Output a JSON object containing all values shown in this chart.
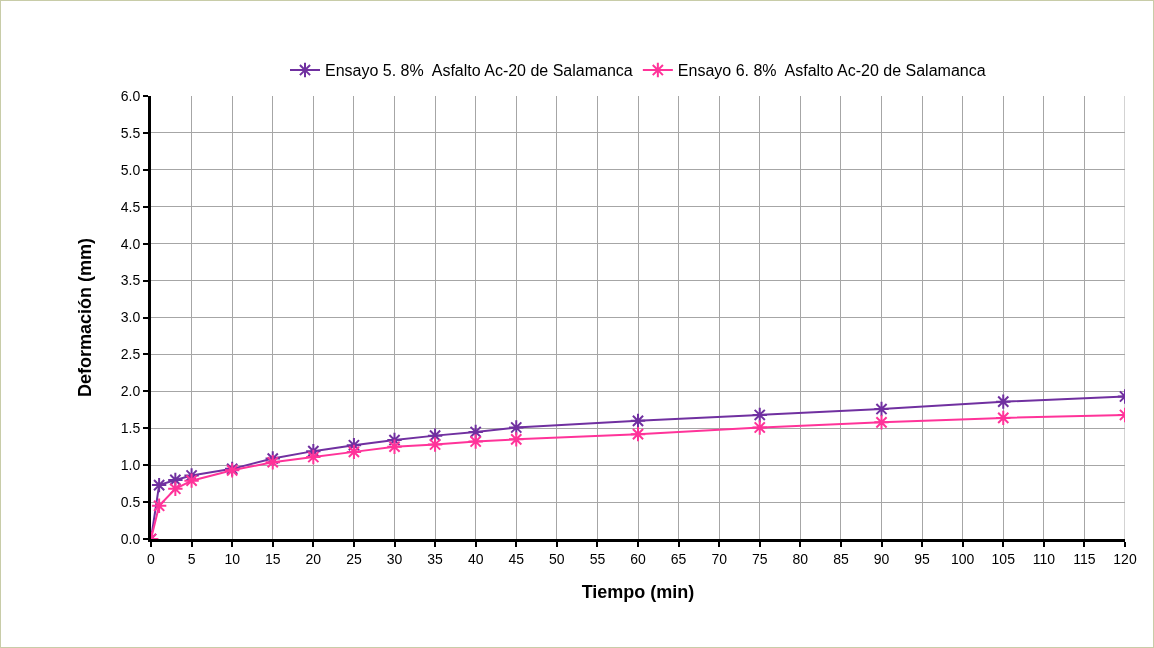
{
  "chart_data": {
    "type": "line",
    "xlabel": "Tiempo (min)",
    "ylabel": "Deformación (mm)",
    "series": [
      {
        "name": "Ensayo 5. 8%  Asfalto Ac-20 de Salamanca",
        "color": "#7030a0",
        "x": [
          0,
          1,
          3,
          5,
          10,
          15,
          20,
          25,
          30,
          35,
          40,
          45,
          60,
          75,
          90,
          105,
          120
        ],
        "values": [
          0,
          0.73,
          0.8,
          0.86,
          0.95,
          1.09,
          1.19,
          1.27,
          1.34,
          1.4,
          1.45,
          1.51,
          1.6,
          1.68,
          1.76,
          1.86,
          1.93
        ]
      },
      {
        "name": "Ensayo 6. 8%  Asfalto Ac-20 de Salamanca",
        "color": "#ff3399",
        "x": [
          0,
          1,
          3,
          5,
          10,
          15,
          20,
          25,
          30,
          35,
          40,
          45,
          60,
          75,
          90,
          105,
          120
        ],
        "values": [
          0,
          0.45,
          0.68,
          0.79,
          0.93,
          1.04,
          1.11,
          1.18,
          1.25,
          1.28,
          1.32,
          1.35,
          1.42,
          1.51,
          1.58,
          1.64,
          1.68
        ]
      }
    ],
    "xlim": [
      0,
      120
    ],
    "xticks": [
      0,
      5,
      10,
      15,
      20,
      25,
      30,
      35,
      40,
      45,
      50,
      55,
      60,
      65,
      70,
      75,
      80,
      85,
      90,
      95,
      100,
      105,
      110,
      115,
      120
    ],
    "ylim": [
      0,
      6
    ],
    "yticks": [
      {
        "value": 0,
        "label": "0.0"
      },
      {
        "value": 0.5,
        "label": "0.5"
      },
      {
        "value": 1,
        "label": "1.0"
      },
      {
        "value": 1.5,
        "label": "1.5"
      },
      {
        "value": 2,
        "label": "2.0"
      },
      {
        "value": 2.5,
        "label": "2.5"
      },
      {
        "value": 3,
        "label": "3.0"
      },
      {
        "value": 3.5,
        "label": "3.5"
      },
      {
        "value": 4,
        "label": "4.0"
      },
      {
        "value": 4.5,
        "label": "4.5"
      },
      {
        "value": 5,
        "label": "5.0"
      },
      {
        "value": 5.5,
        "label": "5.5"
      },
      {
        "value": 6,
        "label": "6.0"
      }
    ],
    "grid": true,
    "legend": "top",
    "marker": "cross",
    "line_style": "solid"
  }
}
